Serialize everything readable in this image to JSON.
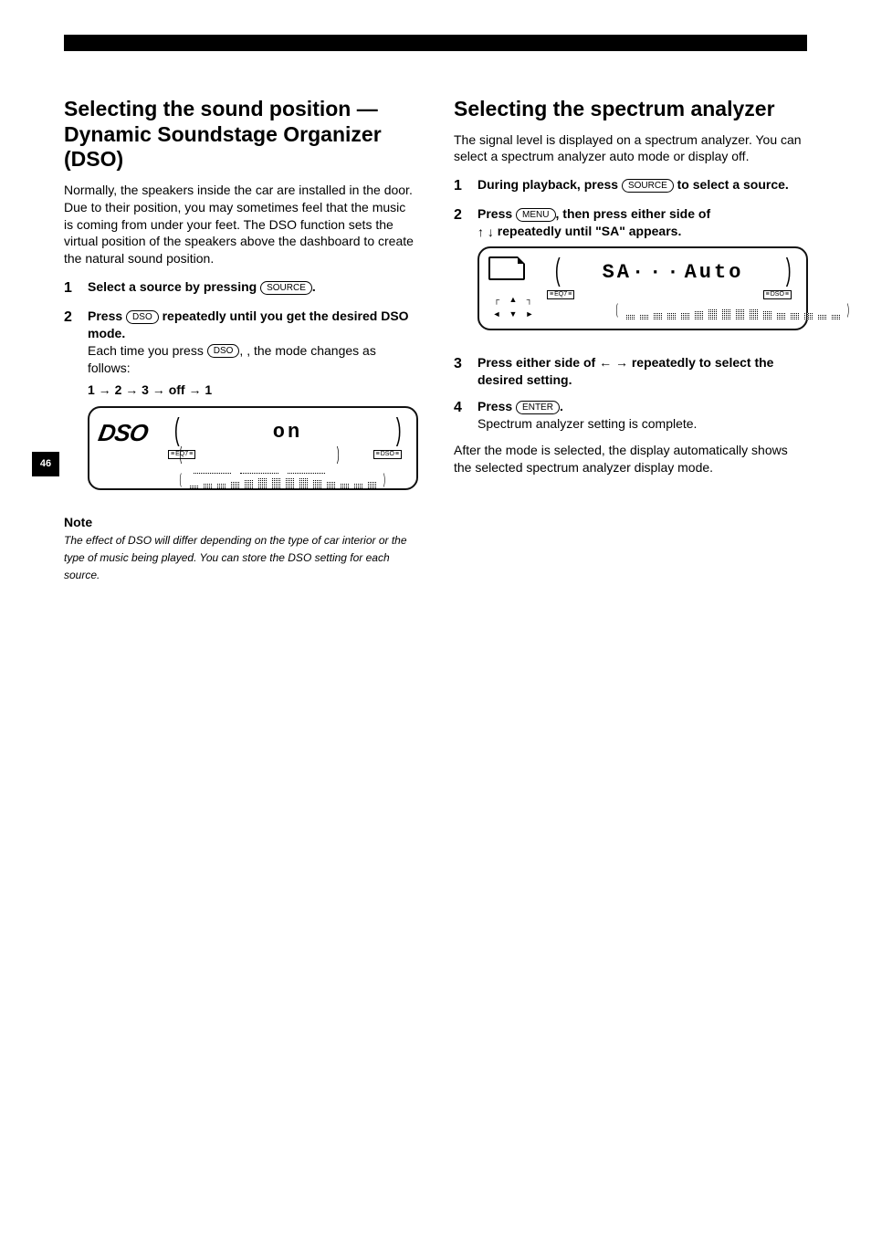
{
  "page_number": "46",
  "left": {
    "title": "Selecting the sound position — Dynamic Soundstage Organizer (DSO)",
    "intro": "Normally, the speakers inside the car are installed in the door. Due to their position, you may sometimes feel that the music is coming from under your feet. The DSO function sets the virtual position of the speakers above the dashboard to create the natural sound position.",
    "step1": {
      "line1_pre": "Select a source by pressing",
      "btn_source": "SOURCE",
      "line1_post": "."
    },
    "step2": {
      "line1_pre": "Press",
      "btn_dso": "DSO",
      "line1_mid": "repeatedly until you get the desired DSO mode.",
      "detail_pre": "Each time you press",
      "detail_post": ", the mode changes as follows:"
    },
    "modes_line": "1 → 2 → 3 → off → 1",
    "lcd": {
      "left_label": "DSO",
      "center_value": "on",
      "tag_left": "EQ7",
      "tag_right": "DSO",
      "eq_heights": [
        2,
        3,
        3,
        4,
        5,
        6,
        6,
        6,
        6,
        5,
        4,
        3,
        3,
        4
      ],
      "colors": {
        "border": "#111111",
        "text": "#000000",
        "bg": "#ffffff"
      }
    },
    "note": "Note",
    "note_body": "The effect of DSO will differ depending on the type of car interior or the type of music being played. You can store the DSO setting for each source."
  },
  "right": {
    "title": "Selecting the spectrum analyzer",
    "intro": "The signal level is displayed on a spectrum analyzer. You can select a spectrum analyzer auto mode or display off.",
    "step1": {
      "line1_pre": "During playback, press",
      "btn_source": "SOURCE",
      "line1_post": "to select a source."
    },
    "step2": {
      "line1_pre": "Press",
      "btn_menu": "MENU",
      "line1_mid": ", then press either side of",
      "arrows": "↑  ↓",
      "line1_post": "repeatedly until \"SA\" appears."
    },
    "lcd": {
      "center_left": "SA",
      "center_dots": "···",
      "center_right": "Auto",
      "tag_left": "EQ7",
      "tag_right": "DSO",
      "eq_heights": [
        3,
        3,
        4,
        4,
        4,
        5,
        6,
        6,
        6,
        6,
        5,
        4,
        4,
        4,
        3,
        3
      ],
      "colors": {
        "border": "#111111",
        "text": "#000000",
        "bg": "#ffffff"
      }
    },
    "step3": {
      "line1_pre": "Press either side of",
      "arrows": "←  →",
      "line1_post": "repeatedly to select the desired setting."
    },
    "step4": {
      "line1_pre": "Press",
      "btn_enter": "ENTER",
      "line1_post": ".",
      "detail": "Spectrum analyzer setting is complete."
    },
    "hint": "After the mode is selected, the display automatically shows the selected spectrum analyzer display mode."
  }
}
